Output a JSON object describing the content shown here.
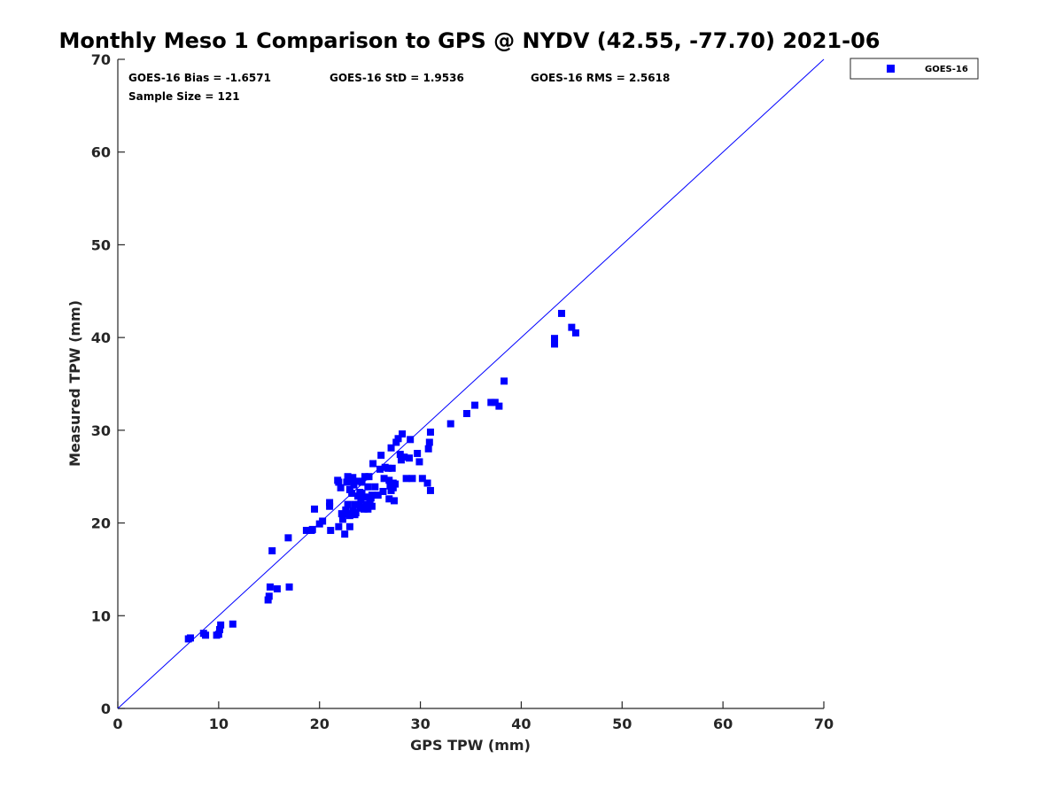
{
  "chart_data": {
    "type": "scatter",
    "title": "Monthly Meso 1 Comparison to GPS @ NYDV (42.55, -77.70) 2021-06",
    "xlabel": "GPS TPW (mm)",
    "ylabel": "Measured TPW (mm)",
    "xlim": [
      0,
      70
    ],
    "ylim": [
      0,
      70
    ],
    "xticks": [
      0,
      10,
      20,
      30,
      40,
      50,
      60,
      70
    ],
    "yticks": [
      0,
      10,
      20,
      30,
      40,
      50,
      60,
      70
    ],
    "grid": false,
    "legend_position": "outside-top-right",
    "colors": {
      "series": "#0000ff",
      "reference_line": "#0000ff",
      "axis": "#262626"
    },
    "reference_line": {
      "name": "1:1 line",
      "x": [
        0,
        70
      ],
      "y": [
        0,
        70
      ]
    },
    "stats": {
      "bias": "GOES-16 Bias = -1.6571",
      "std": "GOES-16 StD = 1.9536",
      "rms": "GOES-16 RMS = 2.5618",
      "sample_size": "Sample Size = 121"
    },
    "series": [
      {
        "name": "GOES-16",
        "marker": "square",
        "x": [
          7.0,
          7.2,
          8.5,
          8.7,
          9.8,
          10.0,
          10.1,
          10.2,
          11.4,
          14.9,
          15.0,
          15.1,
          15.3,
          15.8,
          16.9,
          17.0,
          18.7,
          19.2,
          19.5,
          19.3,
          20.0,
          20.3,
          21.0,
          21.0,
          21.1,
          21.8,
          21.9,
          22.1,
          22.3,
          22.5,
          22.6,
          22.7,
          22.8,
          22.9,
          23.0,
          23.0,
          23.1,
          23.2,
          23.3,
          23.4,
          23.5,
          23.6,
          23.7,
          23.8,
          23.9,
          24.0,
          24.1,
          24.2,
          24.3,
          24.5,
          24.6,
          24.7,
          24.8,
          24.9,
          25.0,
          25.1,
          25.2,
          25.3,
          25.5,
          25.8,
          26.0,
          26.1,
          26.3,
          26.5,
          26.8,
          26.9,
          27.0,
          27.1,
          27.2,
          27.3,
          27.4,
          27.5,
          27.6,
          27.8,
          28.0,
          28.1,
          28.2,
          28.6,
          28.9,
          29.0,
          29.2,
          29.7,
          29.9,
          30.2,
          30.7,
          30.8,
          30.9,
          31.0,
          31.0,
          33.0,
          34.6,
          35.4,
          37.0,
          37.4,
          37.8,
          38.3,
          43.3,
          43.3,
          44.0,
          45.0,
          45.4,
          22.2,
          22.8,
          23.5,
          24.0,
          24.4,
          22.6,
          23.3,
          24.8,
          25.2,
          23.9,
          24.2,
          25.0,
          26.4,
          27.1,
          27.3,
          26.9,
          28.4,
          21.9,
          23.0,
          24.5
        ],
        "y": [
          7.5,
          7.6,
          8.1,
          7.9,
          7.9,
          8.0,
          8.5,
          9.0,
          9.1,
          11.7,
          12.1,
          13.1,
          17.0,
          12.9,
          18.4,
          13.1,
          19.2,
          19.2,
          21.5,
          19.3,
          19.9,
          20.2,
          22.2,
          21.8,
          19.2,
          24.6,
          19.6,
          23.8,
          20.4,
          18.8,
          21.4,
          24.4,
          25.0,
          21.0,
          19.6,
          23.6,
          24.6,
          23.2,
          21.3,
          24.1,
          22.0,
          21.1,
          24.5,
          22.9,
          22.0,
          21.6,
          22.5,
          24.4,
          21.7,
          22.8,
          22.0,
          21.8,
          23.9,
          25.0,
          22.3,
          22.7,
          21.8,
          26.4,
          23.9,
          23.0,
          25.8,
          27.3,
          23.4,
          26.0,
          25.9,
          24.6,
          24.0,
          28.1,
          25.9,
          23.8,
          22.4,
          24.2,
          28.7,
          29.1,
          27.4,
          26.8,
          29.6,
          24.8,
          27.0,
          29.0,
          24.8,
          27.5,
          26.6,
          24.8,
          24.3,
          28.0,
          28.7,
          23.5,
          29.8,
          30.7,
          31.8,
          32.7,
          33.0,
          33.0,
          32.6,
          35.3,
          39.3,
          39.9,
          42.6,
          41.1,
          40.5,
          21.0,
          22.0,
          20.9,
          23.3,
          21.5,
          21.0,
          24.9,
          21.5,
          23.0,
          24.5,
          23.2,
          22.7,
          24.8,
          23.5,
          24.3,
          22.6,
          27.1,
          24.4,
          20.8,
          25.0
        ]
      }
    ]
  }
}
